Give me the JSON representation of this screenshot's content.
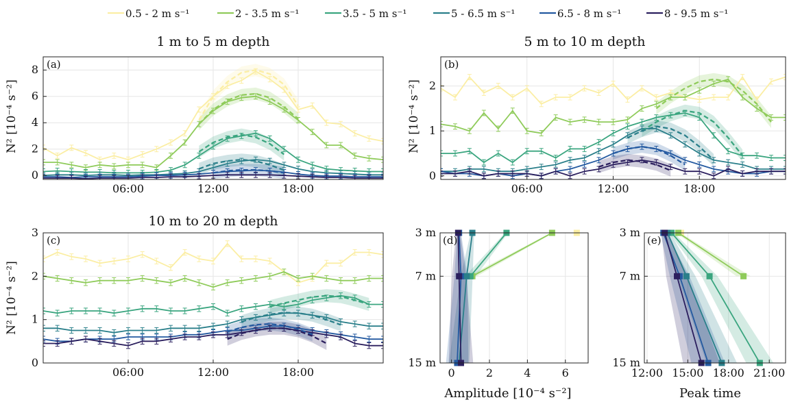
{
  "legend": {
    "placement": "top-center",
    "entries": [
      {
        "label": "0.5 - 2 m s⁻¹",
        "color": "#fbeea4"
      },
      {
        "label": "2 - 3.5 m s⁻¹",
        "color": "#8fcb5a"
      },
      {
        "label": "3.5 - 5 m s⁻¹",
        "color": "#3aa57f"
      },
      {
        "label": "5 - 6.5 m s⁻¹",
        "color": "#2a7f8a"
      },
      {
        "label": "6.5 - 8 m s⁻¹",
        "color": "#2359a0"
      },
      {
        "label": "8 - 9.5 m s⁻¹",
        "color": "#2b1f5e"
      }
    ]
  },
  "chart_data": [
    {
      "id": "a",
      "type": "line",
      "panel_label": "(a)",
      "title": "1 m to 5 m depth",
      "ylabel": "N² [10⁻⁴ s⁻²]",
      "xlim": [
        0,
        24
      ],
      "ylim": [
        -0.3,
        9
      ],
      "grid": true,
      "xticks": [
        6,
        12,
        18
      ],
      "xtick_labels": [
        "06:00",
        "12:00",
        "18:00"
      ],
      "yticks": [
        0,
        2,
        4,
        6,
        8
      ],
      "ytick_labels": [
        "0",
        "2",
        "4",
        "6",
        "8"
      ],
      "hours": [
        0,
        1,
        2,
        3,
        4,
        5,
        6,
        7,
        8,
        9,
        10,
        11,
        12,
        13,
        14,
        15,
        16,
        17,
        18,
        19,
        20,
        21,
        22,
        23,
        24
      ],
      "series": [
        {
          "values": [
            2.1,
            1.5,
            2.1,
            1.7,
            1.2,
            1.5,
            1.2,
            1.6,
            2.0,
            2.5,
            3.2,
            5.0,
            6.0,
            6.8,
            7.2,
            7.9,
            7.3,
            6.5,
            5.0,
            5.3,
            4.0,
            3.9,
            3.2,
            2.8,
            2.6
          ],
          "fit": {
            "hours": [
              11,
              12,
              13,
              14,
              15,
              16,
              17,
              18
            ],
            "values": [
              4.2,
              6.0,
              7.1,
              7.8,
              8.0,
              7.7,
              6.9,
              5.3
            ]
          }
        },
        {
          "values": [
            1.0,
            1.0,
            0.8,
            0.6,
            0.8,
            0.7,
            0.8,
            0.8,
            0.6,
            1.5,
            2.5,
            3.9,
            4.9,
            5.6,
            5.9,
            6.0,
            5.6,
            5.0,
            4.2,
            3.3,
            2.3,
            2.3,
            1.5,
            1.3,
            1.2
          ],
          "fit": {
            "hours": [
              11,
              12,
              13,
              14,
              15,
              16,
              17,
              18
            ],
            "values": [
              3.9,
              5.0,
              5.7,
              6.1,
              6.2,
              5.9,
              5.2,
              4.3
            ]
          }
        },
        {
          "values": [
            0.3,
            0.35,
            0.3,
            0.25,
            0.25,
            0.2,
            0.2,
            0.2,
            0.25,
            0.4,
            0.8,
            1.5,
            2.2,
            2.8,
            3.0,
            3.2,
            2.8,
            2.0,
            1.2,
            0.8,
            0.5,
            0.4,
            0.35,
            0.3,
            0.3
          ],
          "fit": {
            "hours": [
              11,
              12,
              13,
              14,
              15,
              16,
              17
            ],
            "values": [
              1.8,
              2.5,
              2.9,
              3.1,
              2.9,
              2.4,
              1.6
            ]
          }
        },
        {
          "values": [
            0.0,
            0.05,
            0.05,
            0.0,
            0.05,
            0.05,
            0.0,
            0.05,
            0.05,
            0.1,
            0.15,
            0.3,
            0.6,
            0.9,
            1.1,
            1.2,
            1.1,
            0.8,
            0.5,
            0.3,
            0.2,
            0.15,
            0.1,
            0.05,
            0.05
          ],
          "fit": {
            "hours": [
              11,
              12,
              13,
              14,
              15,
              16,
              17
            ],
            "values": [
              0.5,
              0.9,
              1.1,
              1.2,
              1.1,
              0.8,
              0.4
            ]
          }
        },
        {
          "values": [
            -0.1,
            -0.1,
            -0.15,
            -0.1,
            -0.1,
            -0.1,
            -0.1,
            -0.05,
            0.0,
            0.0,
            0.05,
            0.1,
            0.2,
            0.3,
            0.35,
            0.4,
            0.35,
            0.25,
            0.1,
            0.0,
            -0.05,
            -0.05,
            -0.1,
            -0.1,
            -0.1
          ],
          "fit": {
            "hours": [
              12,
              13,
              14,
              15,
              16,
              17
            ],
            "values": [
              0.2,
              0.35,
              0.42,
              0.42,
              0.35,
              0.2
            ]
          }
        },
        {
          "values": [
            -0.2,
            -0.2,
            -0.2,
            -0.25,
            -0.2,
            -0.2,
            -0.2,
            -0.15,
            -0.15,
            -0.1,
            -0.1,
            -0.05,
            0.0,
            0.05,
            0.05,
            0.05,
            0.05,
            0.0,
            -0.05,
            -0.1,
            -0.15,
            -0.15,
            -0.2,
            -0.2,
            -0.2
          ],
          "fit": null
        }
      ]
    },
    {
      "id": "b",
      "type": "line",
      "panel_label": "(b)",
      "title": "5 m to 10 m depth",
      "ylabel": "N² [10⁻⁴ s⁻²]",
      "xlim": [
        0,
        24
      ],
      "ylim": [
        -0.08,
        2.65
      ],
      "grid": true,
      "xticks": [
        6,
        12,
        18
      ],
      "xtick_labels": [
        "06:00",
        "12:00",
        "18:00"
      ],
      "yticks": [
        0,
        1,
        2
      ],
      "ytick_labels": [
        "0",
        "1",
        "2"
      ],
      "hours": [
        0,
        1,
        2,
        3,
        4,
        5,
        6,
        7,
        8,
        9,
        10,
        11,
        12,
        13,
        14,
        15,
        16,
        17,
        18,
        19,
        20,
        21,
        22,
        23,
        24
      ],
      "series": [
        {
          "values": [
            1.95,
            1.75,
            2.2,
            1.85,
            2.0,
            1.75,
            1.95,
            1.6,
            1.75,
            1.75,
            1.95,
            1.85,
            2.05,
            1.7,
            1.95,
            1.75,
            1.85,
            1.75,
            1.7,
            1.75,
            1.75,
            2.2,
            1.7,
            2.1,
            2.2
          ],
          "fit": null
        },
        {
          "values": [
            1.15,
            1.1,
            1.0,
            1.4,
            1.05,
            1.45,
            1.0,
            0.95,
            1.3,
            1.2,
            1.25,
            1.2,
            1.2,
            1.25,
            1.5,
            1.6,
            1.75,
            1.75,
            1.9,
            2.05,
            2.15,
            1.75,
            1.5,
            1.3,
            1.3
          ],
          "fit": {
            "hours": [
              15,
              16,
              17,
              18,
              19,
              20,
              21,
              22,
              23
            ],
            "values": [
              1.5,
              1.75,
              1.95,
              2.1,
              2.15,
              2.1,
              1.9,
              1.6,
              1.2
            ]
          }
        },
        {
          "values": [
            0.5,
            0.5,
            0.55,
            0.3,
            0.5,
            0.3,
            0.55,
            0.55,
            0.4,
            0.6,
            0.6,
            0.75,
            0.95,
            1.1,
            1.2,
            1.3,
            1.35,
            1.4,
            1.3,
            0.9,
            0.55,
            0.45,
            0.45,
            0.4,
            0.4
          ],
          "fit": {
            "hours": [
              14,
              15,
              16,
              17,
              18,
              19,
              20,
              21
            ],
            "values": [
              1.0,
              1.2,
              1.35,
              1.45,
              1.4,
              1.2,
              0.85,
              0.45
            ]
          }
        },
        {
          "values": [
            0.1,
            0.1,
            0.15,
            0.15,
            0.1,
            0.1,
            0.15,
            0.2,
            0.25,
            0.35,
            0.4,
            0.55,
            0.7,
            0.9,
            1.05,
            1.05,
            0.9,
            0.7,
            0.5,
            0.35,
            0.3,
            0.25,
            0.15,
            0.15,
            0.15
          ],
          "fit": {
            "hours": [
              13,
              14,
              15,
              16,
              17,
              18,
              19
            ],
            "values": [
              0.85,
              1.0,
              1.1,
              1.05,
              0.9,
              0.65,
              0.35
            ]
          }
        },
        {
          "values": [
            0.1,
            0.05,
            0.05,
            0.0,
            0.05,
            0.0,
            0.05,
            0.0,
            0.1,
            0.15,
            0.25,
            0.35,
            0.5,
            0.6,
            0.65,
            0.6,
            0.5,
            0.35,
            0.25,
            0.15,
            0.1,
            0.05,
            0.05,
            0.1,
            0.1
          ],
          "fit": {
            "hours": [
              12,
              13,
              14,
              15,
              16,
              17
            ],
            "values": [
              0.5,
              0.6,
              0.65,
              0.6,
              0.45,
              0.25
            ]
          }
        },
        {
          "values": [
            0.05,
            0.05,
            0.1,
            0.0,
            0.05,
            0.05,
            0.05,
            0.0,
            0.1,
            0.0,
            0.1,
            0.15,
            0.25,
            0.3,
            0.35,
            0.3,
            0.2,
            0.1,
            0.1,
            0.0,
            0.15,
            0.05,
            0.1,
            0.1,
            0.1
          ],
          "fit": {
            "hours": [
              11,
              12,
              13,
              14,
              15,
              16
            ],
            "values": [
              0.2,
              0.3,
              0.35,
              0.32,
              0.25,
              0.12
            ]
          }
        }
      ]
    },
    {
      "id": "c",
      "type": "line",
      "panel_label": "(c)",
      "title": "10 m to 20 m depth",
      "ylabel": "N² [10⁻⁴ s⁻²]",
      "xlim": [
        0,
        24
      ],
      "ylim": [
        0,
        3
      ],
      "grid": true,
      "xticks": [
        6,
        12,
        18
      ],
      "xtick_labels": [
        "06:00",
        "12:00",
        "18:00"
      ],
      "yticks": [
        0,
        1,
        2,
        3
      ],
      "ytick_labels": [
        "0",
        "1",
        "2",
        "3"
      ],
      "hours": [
        0,
        1,
        2,
        3,
        4,
        5,
        6,
        7,
        8,
        9,
        10,
        11,
        12,
        13,
        14,
        15,
        16,
        17,
        18,
        19,
        20,
        21,
        22,
        23,
        24
      ],
      "series": [
        {
          "values": [
            2.4,
            2.55,
            2.45,
            2.4,
            2.3,
            2.35,
            2.4,
            2.5,
            2.35,
            2.2,
            2.55,
            2.4,
            2.35,
            2.75,
            2.4,
            2.4,
            2.35,
            2.1,
            1.85,
            1.95,
            2.3,
            2.3,
            2.55,
            2.55,
            2.5
          ],
          "fit": null
        },
        {
          "values": [
            2.0,
            1.95,
            1.9,
            1.85,
            1.9,
            1.9,
            1.9,
            1.95,
            1.9,
            1.85,
            1.95,
            1.85,
            1.75,
            1.85,
            1.9,
            1.95,
            2.0,
            2.1,
            1.95,
            2.0,
            1.95,
            1.9,
            1.9,
            1.95,
            1.95
          ],
          "fit": null
        },
        {
          "values": [
            1.2,
            1.15,
            1.2,
            1.2,
            1.2,
            1.15,
            1.2,
            1.25,
            1.25,
            1.2,
            1.2,
            1.25,
            1.3,
            1.15,
            1.25,
            1.3,
            1.35,
            1.3,
            1.35,
            1.45,
            1.5,
            1.55,
            1.5,
            1.35,
            1.35
          ],
          "fit": {
            "hours": [
              16,
              17,
              18,
              19,
              20,
              21,
              22,
              23
            ],
            "values": [
              1.3,
              1.38,
              1.45,
              1.52,
              1.55,
              1.53,
              1.45,
              1.35
            ]
          }
        },
        {
          "values": [
            0.8,
            0.8,
            0.75,
            0.75,
            0.75,
            0.7,
            0.75,
            0.75,
            0.75,
            0.8,
            0.8,
            0.8,
            0.85,
            0.9,
            1.0,
            1.05,
            1.1,
            1.15,
            1.15,
            1.1,
            1.05,
            0.95,
            0.9,
            0.85,
            0.85
          ],
          "fit": {
            "hours": [
              14,
              15,
              16,
              17,
              18,
              19,
              20,
              21
            ],
            "values": [
              0.95,
              1.05,
              1.12,
              1.16,
              1.15,
              1.1,
              1.0,
              0.88
            ]
          }
        },
        {
          "values": [
            0.55,
            0.5,
            0.5,
            0.55,
            0.55,
            0.55,
            0.6,
            0.6,
            0.6,
            0.6,
            0.65,
            0.65,
            0.7,
            0.75,
            0.75,
            0.8,
            0.85,
            0.85,
            0.8,
            0.75,
            0.7,
            0.65,
            0.6,
            0.55,
            0.55
          ],
          "fit": {
            "hours": [
              13,
              14,
              15,
              16,
              17,
              18,
              19
            ],
            "values": [
              0.72,
              0.82,
              0.88,
              0.9,
              0.86,
              0.78,
              0.65
            ]
          }
        },
        {
          "values": [
            0.45,
            0.45,
            0.5,
            0.55,
            0.5,
            0.45,
            0.4,
            0.5,
            0.5,
            0.55,
            0.6,
            0.6,
            0.65,
            0.65,
            0.7,
            0.75,
            0.8,
            0.8,
            0.75,
            0.7,
            0.65,
            0.6,
            0.45,
            0.4,
            0.4
          ],
          "fit": {
            "hours": [
              13,
              14,
              15,
              16,
              17,
              18,
              19,
              20
            ],
            "values": [
              0.55,
              0.68,
              0.76,
              0.8,
              0.8,
              0.74,
              0.62,
              0.45
            ]
          }
        }
      ]
    },
    {
      "id": "d",
      "type": "line",
      "panel_label": "(d)",
      "xlabel": "Amplitude [10⁻⁴ s⁻²]",
      "xlim": [
        -0.6,
        7.2
      ],
      "grid": true,
      "xticks": [
        0,
        2,
        4,
        6
      ],
      "xtick_labels": [
        "0",
        "2",
        "4",
        "6"
      ],
      "depths": [
        3,
        7,
        15
      ],
      "depth_labels": [
        "3 m",
        "7 m",
        "15 m"
      ],
      "series": [
        {
          "values": [
            6.6,
            null,
            null
          ]
        },
        {
          "values": [
            5.3,
            1.1,
            null
          ]
        },
        {
          "values": [
            2.9,
            1.0,
            null
          ]
        },
        {
          "values": [
            1.1,
            0.8,
            0.4
          ]
        },
        {
          "values": [
            0.4,
            0.5,
            0.3
          ]
        },
        {
          "values": [
            0.35,
            0.4,
            0.5
          ]
        }
      ]
    },
    {
      "id": "e",
      "type": "line",
      "panel_label": "(e)",
      "xlabel": "Peak time",
      "xlim": [
        11.8,
        22.2
      ],
      "grid": true,
      "xticks": [
        12,
        15,
        18,
        21
      ],
      "xtick_labels": [
        "12:00",
        "15:00",
        "18:00",
        "21:00"
      ],
      "depths": [
        3,
        7,
        15
      ],
      "depth_labels": [
        "3 m",
        "7 m",
        "15 m"
      ],
      "series": [
        {
          "values": [
            14.5,
            null,
            null
          ]
        },
        {
          "values": [
            14.3,
            19.1,
            null
          ]
        },
        {
          "values": [
            13.8,
            16.6,
            20.3
          ]
        },
        {
          "values": [
            13.5,
            14.9,
            17.5
          ]
        },
        {
          "values": [
            13.2,
            14.4,
            16.5
          ]
        },
        {
          "values": [
            13.3,
            14.2,
            16.0
          ]
        }
      ]
    }
  ]
}
